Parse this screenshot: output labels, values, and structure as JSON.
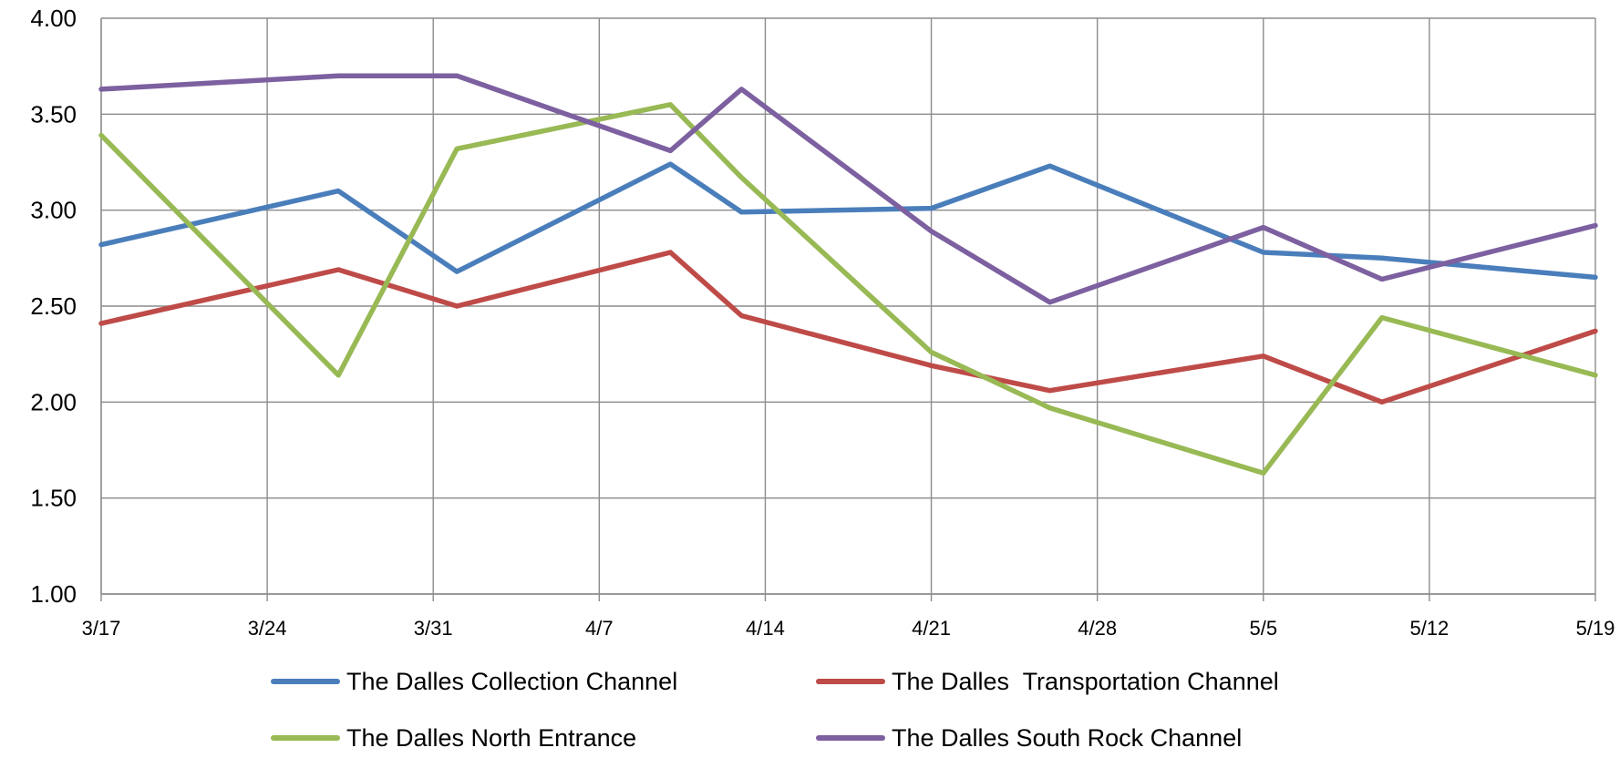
{
  "chart_data": {
    "type": "line",
    "x_tick_labels": [
      "3/17",
      "3/24",
      "3/31",
      "4/7",
      "4/14",
      "4/21",
      "4/28",
      "5/5",
      "5/12",
      "5/19"
    ],
    "x_tick_dates": [
      "2025-03-17",
      "2025-03-24",
      "2025-03-31",
      "2025-04-07",
      "2025-04-14",
      "2025-04-21",
      "2025-04-28",
      "2025-05-05",
      "2025-05-12",
      "2025-05-19"
    ],
    "y_tick_labels": [
      "1.00",
      "1.50",
      "2.00",
      "2.50",
      "3.00",
      "3.50",
      "4.00"
    ],
    "ylim": [
      1.0,
      4.0
    ],
    "xlim": [
      "2025-03-17",
      "2025-05-19"
    ],
    "grid": true,
    "legend_position": "bottom",
    "title": "",
    "xlabel": "",
    "ylabel": "",
    "series": [
      {
        "name": "The Dalles Collection Channel",
        "color": "#4a7ebb",
        "points": [
          {
            "x": "2025-03-17",
            "y": 2.82
          },
          {
            "x": "2025-03-27",
            "y": 3.1
          },
          {
            "x": "2025-04-01",
            "y": 2.68
          },
          {
            "x": "2025-04-10",
            "y": 3.24
          },
          {
            "x": "2025-04-13",
            "y": 2.99
          },
          {
            "x": "2025-04-21",
            "y": 3.01
          },
          {
            "x": "2025-04-26",
            "y": 3.23
          },
          {
            "x": "2025-05-05",
            "y": 2.78
          },
          {
            "x": "2025-05-10",
            "y": 2.75
          },
          {
            "x": "2025-05-19",
            "y": 2.65
          }
        ]
      },
      {
        "name": "The Dalles  Transportation Channel",
        "color": "#be4b48",
        "points": [
          {
            "x": "2025-03-17",
            "y": 2.41
          },
          {
            "x": "2025-03-27",
            "y": 2.69
          },
          {
            "x": "2025-04-01",
            "y": 2.5
          },
          {
            "x": "2025-04-10",
            "y": 2.78
          },
          {
            "x": "2025-04-13",
            "y": 2.45
          },
          {
            "x": "2025-04-21",
            "y": 2.19
          },
          {
            "x": "2025-04-26",
            "y": 2.06
          },
          {
            "x": "2025-05-05",
            "y": 2.24
          },
          {
            "x": "2025-05-10",
            "y": 2.0
          },
          {
            "x": "2025-05-19",
            "y": 2.37
          }
        ]
      },
      {
        "name": "The Dalles North Entrance",
        "color": "#98b954",
        "points": [
          {
            "x": "2025-03-17",
            "y": 3.39
          },
          {
            "x": "2025-03-27",
            "y": 2.14
          },
          {
            "x": "2025-04-01",
            "y": 3.32
          },
          {
            "x": "2025-04-10",
            "y": 3.55
          },
          {
            "x": "2025-04-13",
            "y": 3.17
          },
          {
            "x": "2025-04-21",
            "y": 2.26
          },
          {
            "x": "2025-04-26",
            "y": 1.97
          },
          {
            "x": "2025-05-05",
            "y": 1.63
          },
          {
            "x": "2025-05-10",
            "y": 2.44
          },
          {
            "x": "2025-05-19",
            "y": 2.14
          }
        ]
      },
      {
        "name": "The Dalles South Rock Channel",
        "color": "#7d60a0",
        "points": [
          {
            "x": "2025-03-17",
            "y": 3.63
          },
          {
            "x": "2025-03-27",
            "y": 3.7
          },
          {
            "x": "2025-04-01",
            "y": 3.7
          },
          {
            "x": "2025-04-10",
            "y": 3.31
          },
          {
            "x": "2025-04-13",
            "y": 3.63
          },
          {
            "x": "2025-04-21",
            "y": 2.89
          },
          {
            "x": "2025-04-26",
            "y": 2.52
          },
          {
            "x": "2025-05-05",
            "y": 2.91
          },
          {
            "x": "2025-05-10",
            "y": 2.64
          },
          {
            "x": "2025-05-19",
            "y": 2.92
          }
        ]
      }
    ]
  }
}
